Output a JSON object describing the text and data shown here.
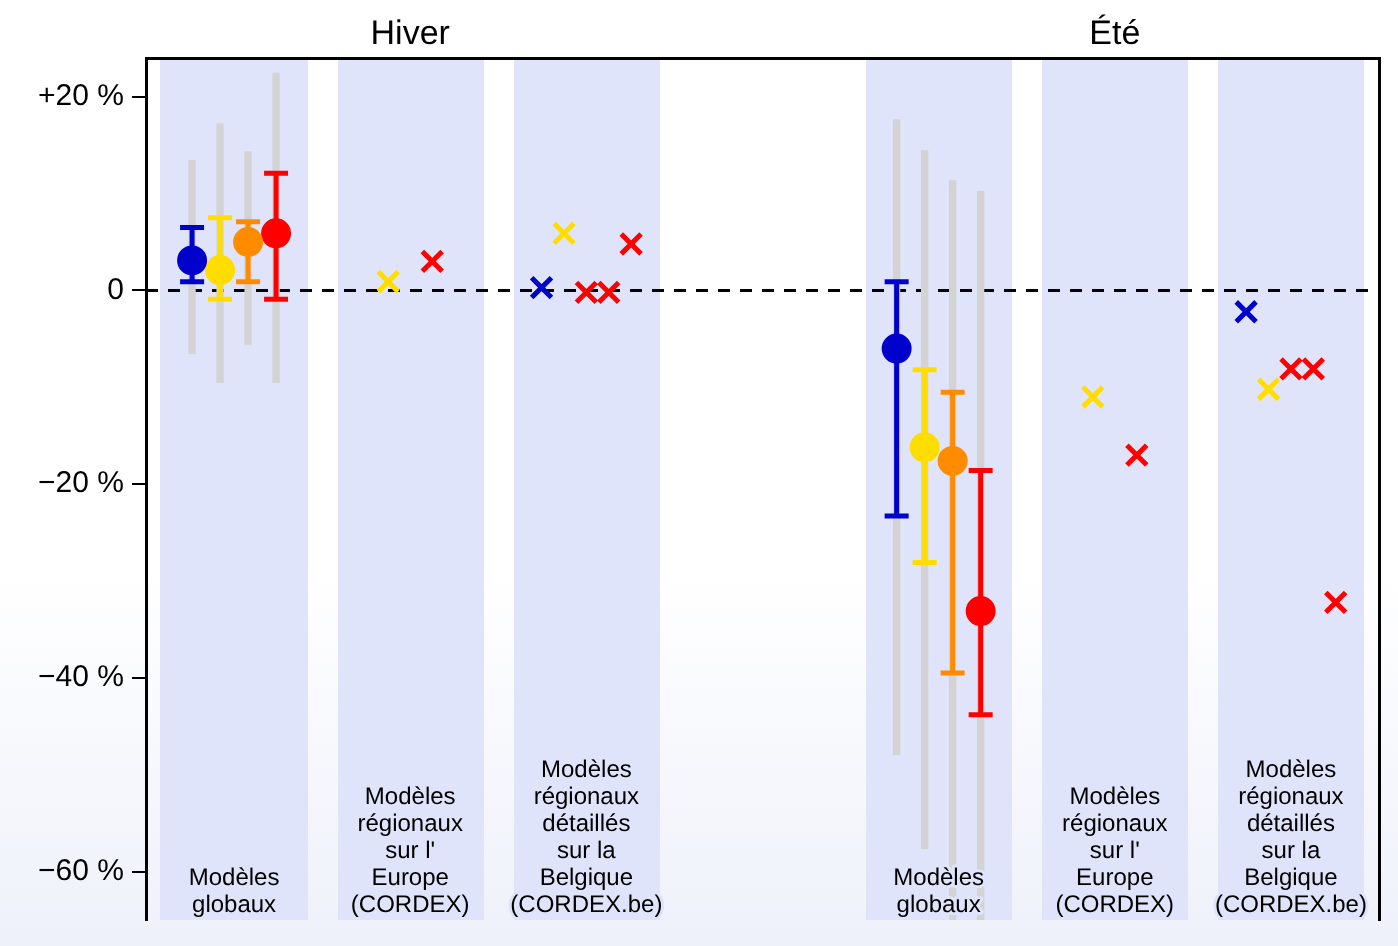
{
  "chart_data": {
    "type": "scatter",
    "categories": [
      "Modèles globaux",
      "Modèles régionaux sur l' Europe (CORDEX)",
      "Modèles régionaux détaillés sur la Belgique (CORDEX.be)",
      null,
      "Modèles globaux",
      "Modèles régionaux sur l' Europe (CORDEX)",
      "Modèles régionaux détaillés sur la Belgique (CORDEX.be)"
    ],
    "ylim": [
      -65,
      24
    ],
    "yticks": [
      {
        "value": 20,
        "label": "+20 %"
      },
      {
        "value": 0,
        "label": "0"
      },
      {
        "value": -20,
        "label": "−20 %"
      },
      {
        "value": -40,
        "label": "−40 %"
      },
      {
        "value": -60,
        "label": "−60 %"
      }
    ],
    "annotations": [
      "Hiver",
      "Été"
    ],
    "ref_lines": [
      {
        "axis": "y",
        "value": 0,
        "color": "#000000",
        "line_style": "dashed"
      }
    ],
    "series": [
      {
        "type": "bar",
        "color": "#d3d3d3",
        "base": [
          -6.5,
          null,
          null,
          null,
          -47.9,
          null,
          null
        ],
        "values": [
          19.9,
          null,
          null,
          null,
          65.5,
          null,
          null
        ]
      },
      {
        "color": "#0000cc",
        "marker": "circle",
        "values": [
          3.1,
          null,
          null,
          null,
          -6.0,
          null,
          null
        ],
        "errors": [
          [
            0.9,
            6.5
          ],
          null,
          null,
          null,
          [
            -23.3,
            0.9
          ],
          null,
          null
        ]
      },
      {
        "type": "bar",
        "color": "#d3d3d3",
        "base": [
          -9.5,
          null,
          null,
          null,
          -57.6,
          null,
          null
        ],
        "values": [
          26.7,
          null,
          null,
          null,
          72.0,
          null,
          null
        ]
      },
      {
        "color": "#ffdd00",
        "marker": "circle",
        "values": [
          2.1,
          null,
          null,
          null,
          -16.2,
          null,
          null
        ],
        "errors": [
          [
            -0.9,
            7.5
          ],
          null,
          null,
          null,
          [
            -28.1,
            -8.2
          ],
          null,
          null
        ]
      },
      {
        "type": "bar",
        "color": "#d3d3d3",
        "base": [
          -5.6,
          null,
          null,
          null,
          -65,
          null,
          null
        ],
        "values": [
          19.9,
          null,
          null,
          null,
          76.3,
          null,
          null
        ]
      },
      {
        "color": "#ff8c00",
        "marker": "circle",
        "values": [
          5.0,
          null,
          null,
          null,
          -17.6,
          null,
          null
        ],
        "errors": [
          [
            0.9,
            7.1
          ],
          null,
          null,
          null,
          [
            -39.5,
            -10.5
          ],
          null,
          null
        ]
      },
      {
        "type": "bar",
        "color": "#d3d3d3",
        "base": [
          -9.5,
          null,
          null,
          null,
          -65,
          null,
          null
        ],
        "values": [
          31.9,
          null,
          null,
          null,
          75.2,
          null,
          null
        ]
      },
      {
        "color": "#ff0000",
        "marker": "circle",
        "values": [
          5.9,
          null,
          null,
          null,
          -33.1,
          null,
          null
        ],
        "errors": [
          [
            -0.9,
            12.1
          ],
          null,
          null,
          null,
          [
            -43.8,
            -18.6
          ],
          null,
          null
        ]
      },
      {
        "color": "#0000cc",
        "marker": "cross",
        "values": [
          null,
          null,
          0.3,
          null,
          null,
          null,
          -2.2
        ]
      },
      {
        "color": "#ffdd00",
        "marker": "cross",
        "values": [
          null,
          0.9,
          5.9,
          null,
          null,
          -11.0,
          -10.2
        ]
      },
      {
        "color": "#ff0000",
        "marker": "cross",
        "values": [
          null,
          3.0,
          -0.2,
          null,
          null,
          -17.0,
          -8.1
        ]
      },
      {
        "color": "#ff0000",
        "marker": "cross",
        "values": [
          null,
          null,
          -0.2,
          null,
          null,
          null,
          -8.1
        ]
      },
      {
        "color": "#ff0000",
        "marker": "cross",
        "values": [
          null,
          null,
          4.8,
          null,
          null,
          null,
          -32.2
        ]
      }
    ]
  }
}
